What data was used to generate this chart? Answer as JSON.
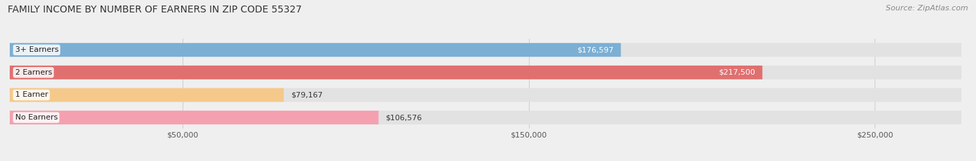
{
  "title": "FAMILY INCOME BY NUMBER OF EARNERS IN ZIP CODE 55327",
  "source": "Source: ZipAtlas.com",
  "categories": [
    "No Earners",
    "1 Earner",
    "2 Earners",
    "3+ Earners"
  ],
  "values": [
    106576,
    79167,
    217500,
    176597
  ],
  "bar_colors": [
    "#f4a0b0",
    "#f5c98a",
    "#e07070",
    "#7bafd4"
  ],
  "label_colors": [
    "#333333",
    "#333333",
    "#ffffff",
    "#ffffff"
  ],
  "value_inside": [
    false,
    false,
    true,
    true
  ],
  "xlim": [
    0,
    275000
  ],
  "xticks": [
    50000,
    150000,
    250000
  ],
  "xtick_labels": [
    "$50,000",
    "$150,000",
    "$250,000"
  ],
  "background_color": "#efefef",
  "bar_background_color": "#e2e2e2",
  "title_fontsize": 10,
  "source_fontsize": 8,
  "bar_height": 0.6,
  "figsize": [
    14.06,
    2.33
  ],
  "dpi": 100
}
